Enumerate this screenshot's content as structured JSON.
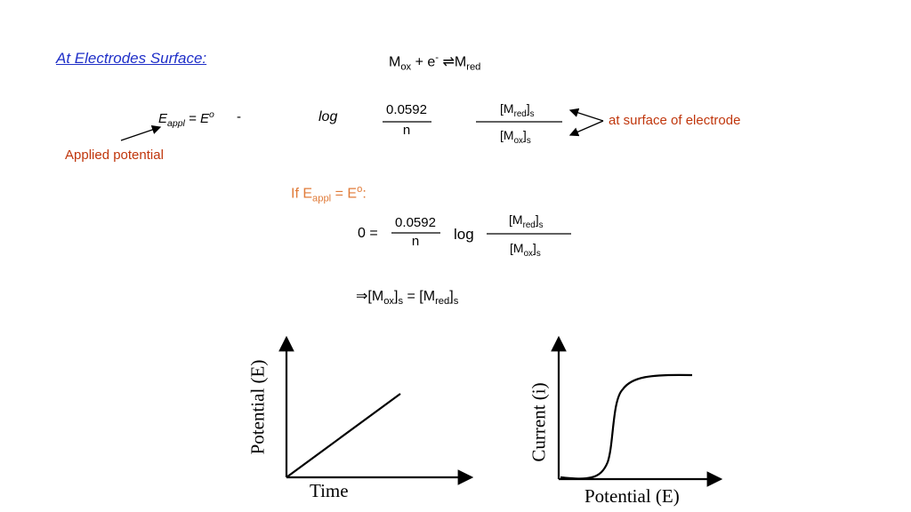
{
  "header": {
    "title": "At Electrodes Surface:"
  },
  "reaction": [
    "M",
    "ox",
    " + e",
    "-",
    " ⇌M",
    "red"
  ],
  "equation_1": {
    "lhs": [
      "E",
      "appl",
      " = E",
      "o"
    ],
    "minus": "-",
    "log": "log",
    "coefficient": {
      "numerator": "0.0592",
      "denominator": "n"
    },
    "ratio": {
      "numerator": [
        "[M",
        "red",
        "]",
        "s"
      ],
      "denominator": [
        "[M",
        "ox",
        "]",
        "s"
      ]
    },
    "surface_note": "at surface of electrode",
    "applied_note": "Applied potential"
  },
  "condition": [
    "If E",
    "appl",
    " = E",
    "o",
    ":"
  ],
  "equation_2": {
    "lhs": "0 =",
    "coefficient": {
      "numerator": "0.0592",
      "denominator": "n"
    },
    "log": "log",
    "ratio": {
      "numerator": [
        "[M",
        "red",
        "]",
        "s"
      ],
      "denominator": [
        "[M",
        "ox",
        "]",
        "s"
      ]
    }
  },
  "result": [
    "⇒[M",
    "ox",
    "]",
    "s",
    " = [M",
    "red",
    "]",
    "s"
  ],
  "plot_1": {
    "y_label": "Potential (E)",
    "x_label": "Time"
  },
  "plot_2": {
    "y_label": "Current (i)",
    "x_label": "Potential (E)"
  }
}
